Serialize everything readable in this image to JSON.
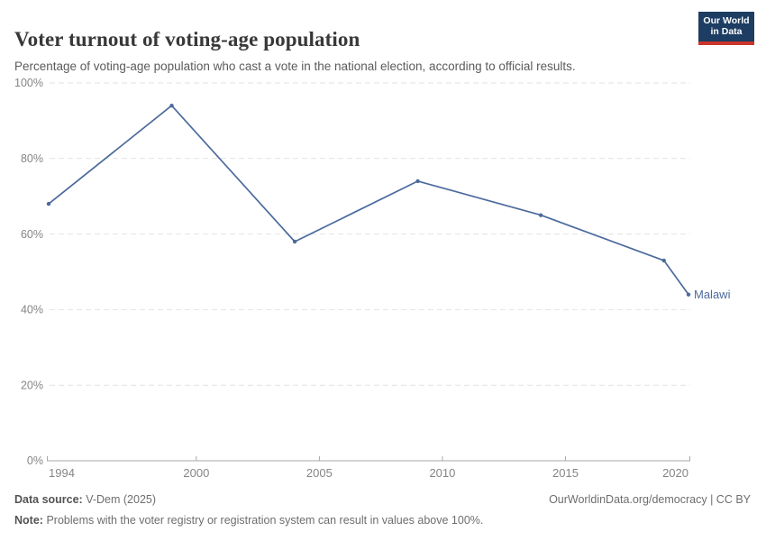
{
  "header": {
    "title": "Voter turnout of voting-age population",
    "subtitle": "Percentage of voting-age population who cast a vote in the national election, according to official results."
  },
  "logo": {
    "line1": "Our World",
    "line2": "in Data"
  },
  "chart_data": {
    "type": "line",
    "title": "Voter turnout of voting-age population",
    "xlabel": "",
    "ylabel": "",
    "x": [
      1994,
      1999,
      2004,
      2009,
      2014,
      2019,
      2020
    ],
    "series": [
      {
        "name": "Malawi",
        "values": [
          68,
          94,
          58,
          74,
          65,
          53,
          44
        ]
      }
    ],
    "xlim": [
      1994,
      2020
    ],
    "ylim": [
      0,
      100
    ],
    "xticks": [
      1994,
      2000,
      2005,
      2010,
      2015,
      2020
    ],
    "yticks": [
      0,
      20,
      40,
      60,
      80,
      100
    ],
    "ytick_suffix": "%",
    "grid": "horizontal-dashed",
    "legend": "end-of-line-label",
    "entity_label": "Malawi"
  },
  "footer": {
    "data_source_label": "Data source:",
    "data_source_value": "V-Dem (2025)",
    "attribution": "OurWorldinData.org/democracy | CC BY",
    "note_label": "Note:",
    "note_value": "Problems with the voter registry or registration system can result in values above 100%."
  },
  "colors": {
    "line": "#4c6a9c",
    "grid": "#e2e2e2",
    "axis": "#a8a8a8",
    "tick_label": "#858585",
    "logo_bg": "#1d3d63",
    "logo_accent": "#cb342b"
  }
}
